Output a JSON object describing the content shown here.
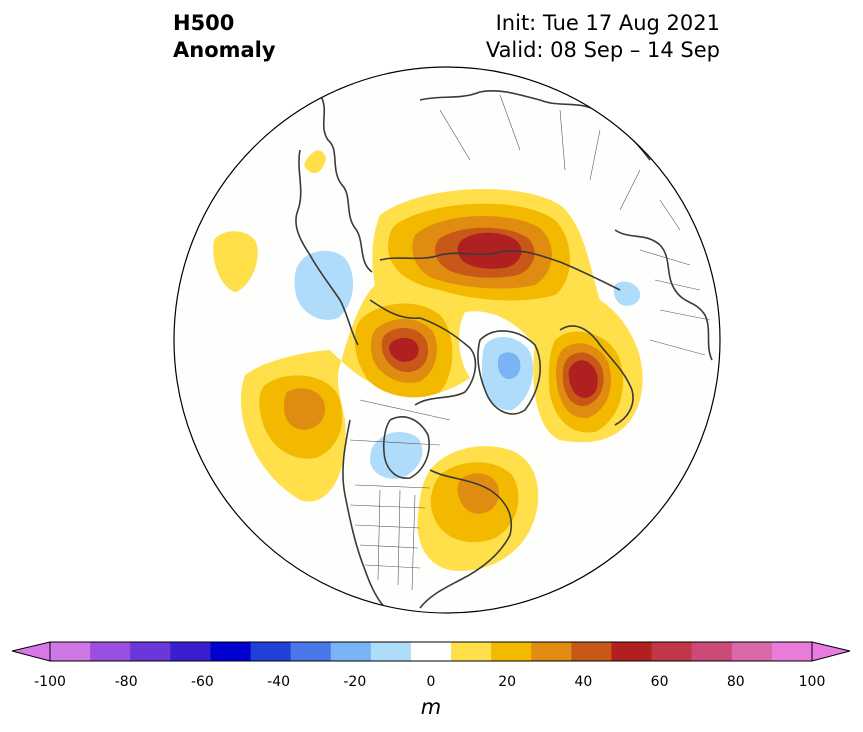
{
  "header": {
    "title_line1": "H500",
    "title_line2": "Anomaly",
    "init": "Init: Tue 17 Aug 2021",
    "valid": "Valid: 08 Sep – 14 Sep"
  },
  "colorbar": {
    "unit": "m",
    "ticks": [
      "-100",
      "-80",
      "-60",
      "-40",
      "-20",
      "0",
      "20",
      "40",
      "60",
      "80",
      "100"
    ],
    "levels": [
      -100,
      -90,
      -80,
      -70,
      -60,
      -50,
      -40,
      -30,
      -20,
      -10,
      10,
      20,
      30,
      40,
      50,
      60,
      70,
      80,
      90,
      100
    ],
    "colors": [
      "#d077e8",
      "#9a4fe0",
      "#6a38d8",
      "#3a1fd0",
      "#0000d0",
      "#2040d8",
      "#4a78e8",
      "#7ab4f4",
      "#b0dcfc",
      "#ffffff",
      "#ffe04a",
      "#f2b900",
      "#e08c10",
      "#c85818",
      "#b02020",
      "#c03848",
      "#cc4a78",
      "#d868a8",
      "#e87cd8"
    ],
    "under_color": "#d877e8",
    "over_color": "#e87ce0"
  },
  "map": {
    "projection": "north-polar-stereographic",
    "field": "500 hPa geopotential height anomaly",
    "features": [
      {
        "region": "north-central-siberia",
        "kind": "positive",
        "peak_m": 55
      },
      {
        "region": "ne-pacific-alaska",
        "kind": "positive",
        "peak_m": 55
      },
      {
        "region": "barents-scandinavia",
        "kind": "positive",
        "peak_m": 55
      },
      {
        "region": "central-north-pacific",
        "kind": "positive",
        "peak_m": 45
      },
      {
        "region": "northeast-us-great-lakes",
        "kind": "positive",
        "peak_m": 35
      },
      {
        "region": "greenland",
        "kind": "negative",
        "peak_m": -25
      },
      {
        "region": "kamchatka-okhotsk",
        "kind": "negative",
        "peak_m": -15
      },
      {
        "region": "hudson-bay-region",
        "kind": "negative",
        "peak_m": -15
      },
      {
        "region": "ural-region",
        "kind": "negative",
        "peak_m": -15
      },
      {
        "region": "west-pacific",
        "kind": "positive",
        "peak_m": 15
      },
      {
        "region": "east-asia-coast",
        "kind": "positive",
        "peak_m": 15
      }
    ]
  }
}
